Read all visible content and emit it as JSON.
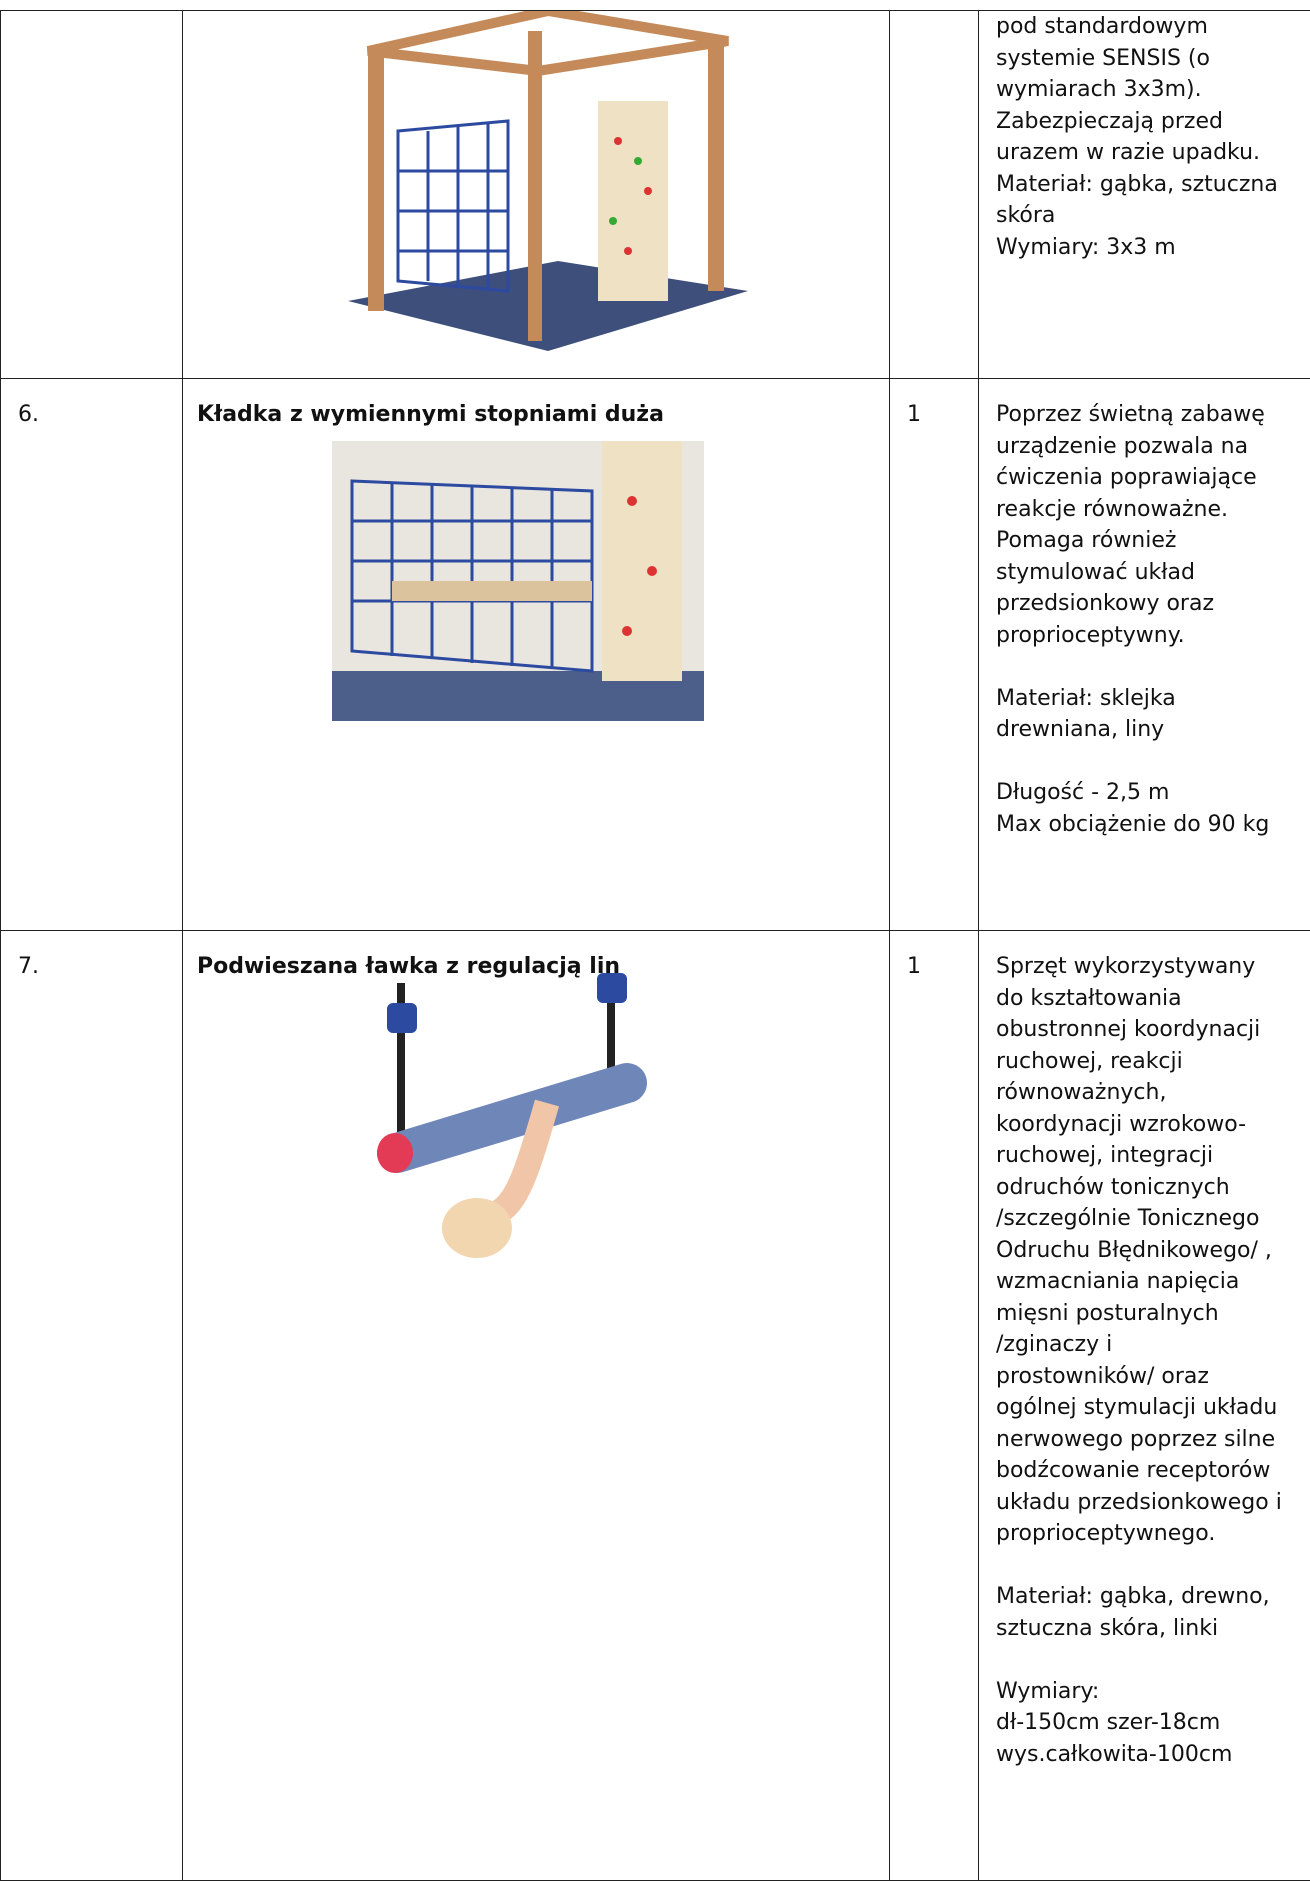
{
  "table": {
    "rows": [
      {
        "number": null,
        "name": null,
        "quantity": null,
        "description": [
          [
            "pod standardowym",
            "systemie SENSIS (o",
            "wymiarach 3x3m).",
            "Zabezpieczają przed",
            "urazem w razie upadku.",
            "Materiał: gąbka, sztuczna",
            "skóra",
            "Wymiary: 3x3 m"
          ]
        ]
      },
      {
        "number": "6.",
        "name": "Kładka z wymiennymi stopniami duża",
        "quantity": "1",
        "description": [
          [
            "Poprzez świetną zabawę",
            "urządzenie pozwala na",
            "ćwiczenia poprawiające",
            "reakcje równoważne.",
            "Pomaga również",
            "stymulować układ",
            "przedsionkowy oraz",
            "proprioceptywny."
          ],
          [
            "Materiał: sklejka",
            "drewniana, liny"
          ],
          [
            "Długość - 2,5 m",
            "Max obciążenie do 90 kg"
          ]
        ]
      },
      {
        "number": "7.",
        "name": "Podwieszana ławka z regulacją lin",
        "quantity": "1",
        "description": [
          [
            "Sprzęt wykorzystywany",
            "do kształtowania",
            "obustronnej koordynacji",
            "ruchowej, reakcji",
            "równoważnych,",
            "koordynacji wzrokowo-",
            "ruchowej, integracji",
            "odruchów tonicznych",
            "/szczególnie Tonicznego",
            "Odruchu Błędnikowego/ ,",
            "wzmacniania napięcia",
            "mięsni posturalnych",
            "/zginaczy  i",
            "prostowników/ oraz",
            "ogólnej stymulacji układu",
            "nerwowego poprzez silne",
            "bodźcowanie receptorów",
            "układu przedsionkowego i",
            "proprioceptywnego."
          ],
          [
            "Materiał: gąbka, drewno,",
            "sztuczna skóra, linki"
          ],
          [
            "Wymiary:",
            "dł-150cm szer-18cm",
            "wys.całkowita-100cm"
          ]
        ]
      }
    ]
  }
}
